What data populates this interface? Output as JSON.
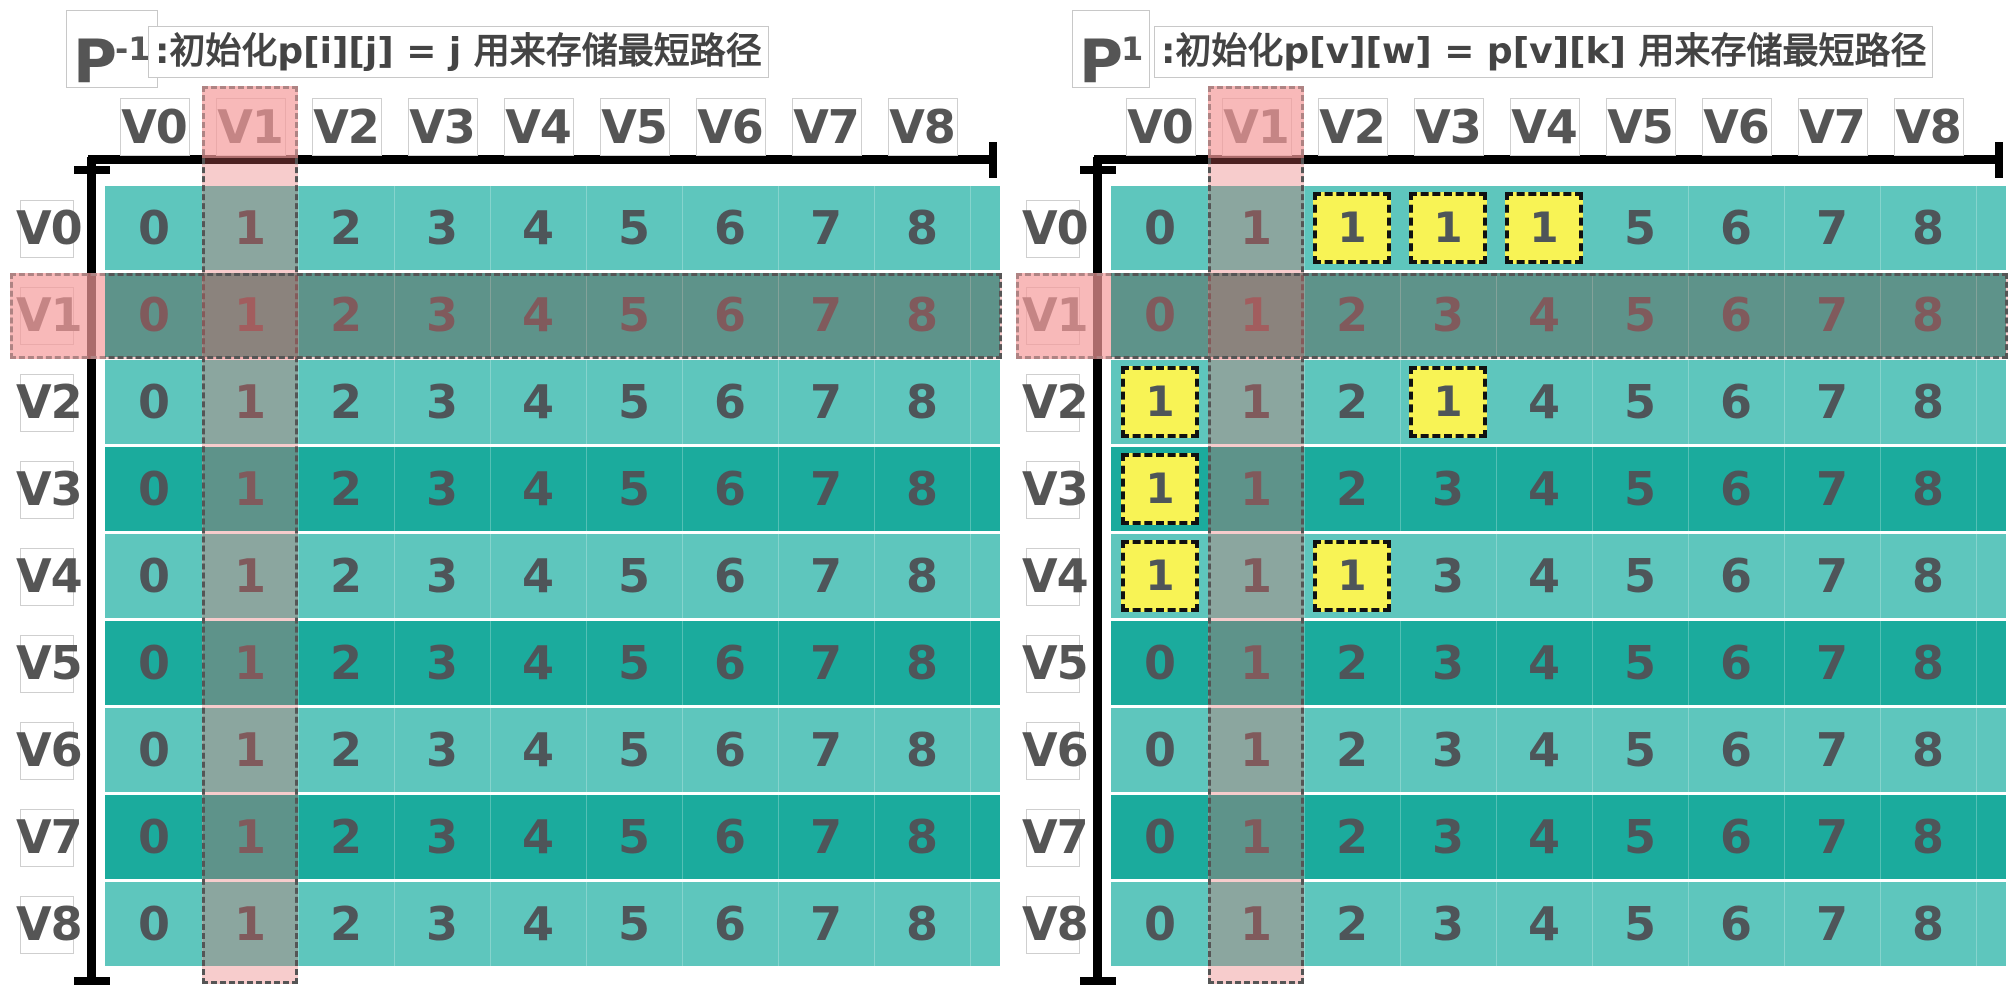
{
  "colors": {
    "band_light": "#5ec6bd",
    "band_dark": "#1bab9d",
    "highlight_yellow": "#f8f355",
    "overlay_red": "#e66464",
    "number_text": "#4e5559"
  },
  "vertices": [
    "V0",
    "V1",
    "V2",
    "V3",
    "V4",
    "V5",
    "V6",
    "V7",
    "V8"
  ],
  "selected_vertex": "V1",
  "panels": [
    {
      "id": "p-minus-1",
      "label": "P",
      "label_sup": "-1",
      "description": ":初始化p[i][j] = j 用来存储最短路径",
      "matrix": [
        [
          0,
          1,
          2,
          3,
          4,
          5,
          6,
          7,
          8
        ],
        [
          0,
          1,
          2,
          3,
          4,
          5,
          6,
          7,
          8
        ],
        [
          0,
          1,
          2,
          3,
          4,
          5,
          6,
          7,
          8
        ],
        [
          0,
          1,
          2,
          3,
          4,
          5,
          6,
          7,
          8
        ],
        [
          0,
          1,
          2,
          3,
          4,
          5,
          6,
          7,
          8
        ],
        [
          0,
          1,
          2,
          3,
          4,
          5,
          6,
          7,
          8
        ],
        [
          0,
          1,
          2,
          3,
          4,
          5,
          6,
          7,
          8
        ],
        [
          0,
          1,
          2,
          3,
          4,
          5,
          6,
          7,
          8
        ],
        [
          0,
          1,
          2,
          3,
          4,
          5,
          6,
          7,
          8
        ]
      ],
      "highlighted": []
    },
    {
      "id": "p1",
      "label": "P",
      "label_sup": "1",
      "description": ":初始化p[v][w] = p[v][k] 用来存储最短路径",
      "matrix": [
        [
          0,
          1,
          1,
          1,
          1,
          5,
          6,
          7,
          8
        ],
        [
          0,
          1,
          2,
          3,
          4,
          5,
          6,
          7,
          8
        ],
        [
          1,
          1,
          2,
          1,
          4,
          5,
          6,
          7,
          8
        ],
        [
          1,
          1,
          2,
          3,
          4,
          5,
          6,
          7,
          8
        ],
        [
          1,
          1,
          1,
          3,
          4,
          5,
          6,
          7,
          8
        ],
        [
          0,
          1,
          2,
          3,
          4,
          5,
          6,
          7,
          8
        ],
        [
          0,
          1,
          2,
          3,
          4,
          5,
          6,
          7,
          8
        ],
        [
          0,
          1,
          2,
          3,
          4,
          5,
          6,
          7,
          8
        ],
        [
          0,
          1,
          2,
          3,
          4,
          5,
          6,
          7,
          8
        ]
      ],
      "highlighted": [
        [
          0,
          2
        ],
        [
          0,
          3
        ],
        [
          0,
          4
        ],
        [
          2,
          0
        ],
        [
          2,
          3
        ],
        [
          3,
          0
        ],
        [
          4,
          0
        ],
        [
          4,
          2
        ]
      ]
    }
  ]
}
